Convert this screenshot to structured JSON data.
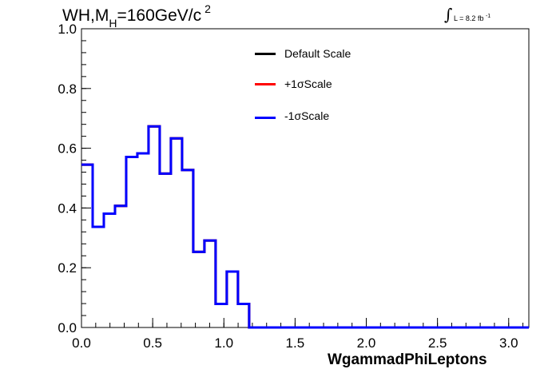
{
  "title": {
    "prefix": "WH,M",
    "subscript": "H",
    "suffix": "=160GeV/c",
    "superscript": "2"
  },
  "lumi": {
    "integral_symbol": "∫",
    "text": "L = 8.2 fb",
    "superscript": "-1"
  },
  "colors": {
    "default": "#000000",
    "plus": "#ff0000",
    "minus": "#0000ff"
  },
  "chart_data": {
    "type": "line",
    "drawstyle": "histogram-step",
    "xlabel": "WgammadPhiLeptons",
    "ylabel": "",
    "xlim": [
      0,
      3.14159
    ],
    "ylim": [
      0,
      1.0
    ],
    "xticks": [
      "0.0",
      "0.5",
      "1.0",
      "1.5",
      "2.0",
      "2.5",
      "3.0"
    ],
    "yticks": [
      "0.0",
      "0.2",
      "0.4",
      "0.6",
      "0.8",
      "1.0"
    ],
    "bin_edges": [
      0,
      0.0785,
      0.157,
      0.2355,
      0.314,
      0.3925,
      0.471,
      0.5495,
      0.628,
      0.7065,
      0.785,
      0.8635,
      0.942,
      1.0205,
      1.099,
      1.1775,
      1.256,
      1.3345,
      1.413,
      1.4915,
      1.57,
      1.6485,
      1.727,
      1.8055,
      1.884,
      1.9625,
      2.041,
      2.1195,
      2.198,
      2.2765,
      2.355,
      2.4335,
      2.512,
      2.5905,
      2.669,
      2.7475,
      2.826,
      2.9045,
      2.983,
      3.0615,
      3.14159
    ],
    "legend_position": "top-center",
    "series": [
      {
        "name": "Default Scale",
        "color": "#000000",
        "values": [
          0.545,
          0.337,
          0.381,
          0.407,
          0.571,
          0.583,
          0.673,
          0.515,
          0.633,
          0.527,
          0.253,
          0.291,
          0.079,
          0.187,
          0.079,
          0,
          0,
          0,
          0,
          0,
          0,
          0,
          0,
          0,
          0,
          0,
          0,
          0,
          0,
          0,
          0,
          0,
          0,
          0,
          0,
          0,
          0,
          0,
          0,
          0
        ]
      },
      {
        "name": "+1σScale",
        "color": "#ff0000",
        "values": [
          0.545,
          0.337,
          0.381,
          0.407,
          0.571,
          0.583,
          0.673,
          0.515,
          0.633,
          0.527,
          0.253,
          0.291,
          0.079,
          0.187,
          0.079,
          0,
          0,
          0,
          0,
          0,
          0,
          0,
          0,
          0,
          0,
          0,
          0,
          0,
          0,
          0,
          0,
          0,
          0,
          0,
          0,
          0,
          0,
          0,
          0,
          0
        ]
      },
      {
        "name": "-1σScale",
        "color": "#0000ff",
        "values": [
          0.545,
          0.337,
          0.381,
          0.407,
          0.571,
          0.583,
          0.673,
          0.515,
          0.633,
          0.527,
          0.253,
          0.291,
          0.079,
          0.187,
          0.079,
          0,
          0,
          0,
          0,
          0,
          0,
          0,
          0,
          0,
          0,
          0,
          0,
          0,
          0,
          0,
          0,
          0,
          0,
          0,
          0,
          0,
          0,
          0,
          0,
          0
        ]
      }
    ]
  }
}
